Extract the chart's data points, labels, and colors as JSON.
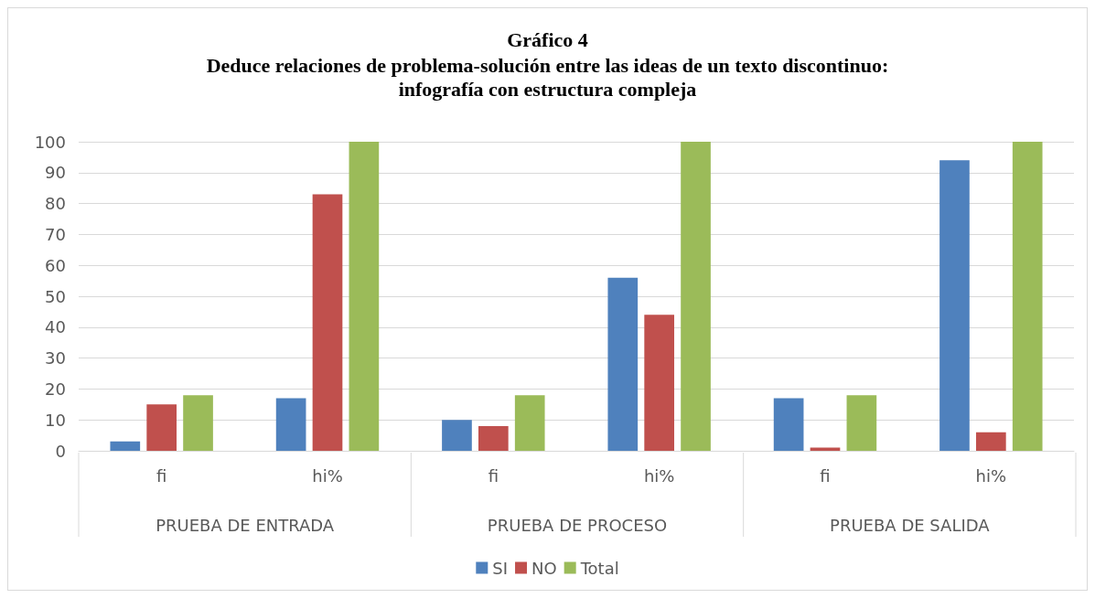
{
  "chart_data": {
    "type": "bar",
    "title": "Gráfico 4",
    "subtitle": "Deduce relaciones de problema-solución entre las ideas de un texto discontinuo:\ninfografía con estructura compleja",
    "categories": [
      "fi",
      "hi%",
      "fi",
      "hi%",
      "fi",
      "hi%"
    ],
    "annotations": [
      "PRUEBA DE ENTRADA",
      "PRUEBA DE PROCESO",
      "PRUEBA DE SALIDA"
    ],
    "series": [
      {
        "name": "SI",
        "color": "#4f81bd",
        "values": [
          3,
          17,
          10,
          56,
          17,
          94
        ]
      },
      {
        "name": "NO",
        "color": "#c0504d",
        "values": [
          15,
          83,
          8,
          44,
          1,
          6
        ]
      },
      {
        "name": "Total",
        "color": "#9bbb59",
        "values": [
          18,
          100,
          18,
          100,
          18,
          100
        ]
      }
    ],
    "ylim": [
      0,
      100
    ],
    "yticks": [
      0,
      10,
      20,
      30,
      40,
      50,
      60,
      70,
      80,
      90,
      100
    ],
    "grid": "y",
    "legend": "bottom"
  }
}
